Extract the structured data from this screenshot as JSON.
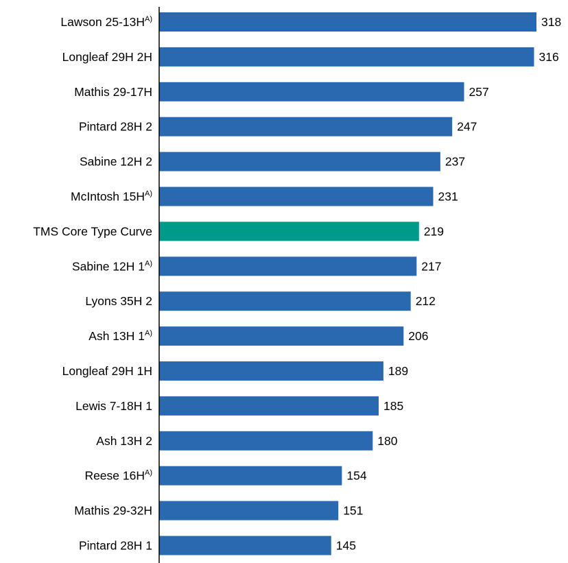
{
  "chart_data": {
    "type": "bar",
    "orientation": "horizontal",
    "title": "",
    "xlabel": "",
    "ylabel": "",
    "grid": false,
    "legend": "none",
    "categories": [
      {
        "label": "Lawson 25-13H",
        "sup": "A)"
      },
      {
        "label": "Longleaf 29H 2H",
        "sup": ""
      },
      {
        "label": "Mathis 29-17H",
        "sup": ""
      },
      {
        "label": "Pintard 28H 2",
        "sup": ""
      },
      {
        "label": "Sabine 12H 2",
        "sup": ""
      },
      {
        "label": "McIntosh 15H",
        "sup": "A)"
      },
      {
        "label": "TMS Core Type Curve",
        "sup": ""
      },
      {
        "label": "Sabine 12H 1",
        "sup": "A)"
      },
      {
        "label": "Lyons 35H 2",
        "sup": ""
      },
      {
        "label": "Ash 13H 1",
        "sup": "A)"
      },
      {
        "label": "Longleaf 29H 1H",
        "sup": ""
      },
      {
        "label": "Lewis 7-18H 1",
        "sup": ""
      },
      {
        "label": "Ash 13H 2",
        "sup": ""
      },
      {
        "label": "Reese 16H",
        "sup": "A)"
      },
      {
        "label": "Mathis 29-32H",
        "sup": ""
      },
      {
        "label": "Pintard 28H 1",
        "sup": ""
      }
    ],
    "values": [
      318,
      316,
      257,
      247,
      237,
      231,
      219,
      217,
      212,
      206,
      189,
      185,
      180,
      154,
      151,
      145
    ],
    "value_labels": [
      "318",
      "316",
      "257",
      "247",
      "237",
      "231",
      "219",
      "217",
      "212",
      "206",
      "189",
      "185",
      "180",
      "154",
      "151",
      "145"
    ],
    "highlight_index": 6,
    "xlim": [
      0,
      330
    ],
    "colors": {
      "bar": "#2a69b0",
      "highlight": "#009a8a",
      "axis": "#000000",
      "text": "#000000"
    }
  }
}
